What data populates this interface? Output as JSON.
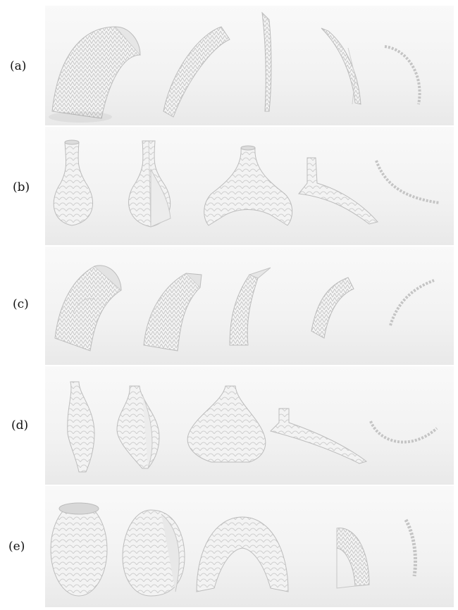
{
  "figure": {
    "rows": [
      {
        "label": "(a)",
        "shape": "half-cylinder",
        "stages": 5
      },
      {
        "label": "(b)",
        "shape": "bottle",
        "stages": 5
      },
      {
        "label": "(c)",
        "shape": "tube",
        "stages": 5
      },
      {
        "label": "(d)",
        "shape": "vase",
        "stages": 5
      },
      {
        "label": "(e)",
        "shape": "ovoid",
        "stages": 5
      }
    ]
  }
}
